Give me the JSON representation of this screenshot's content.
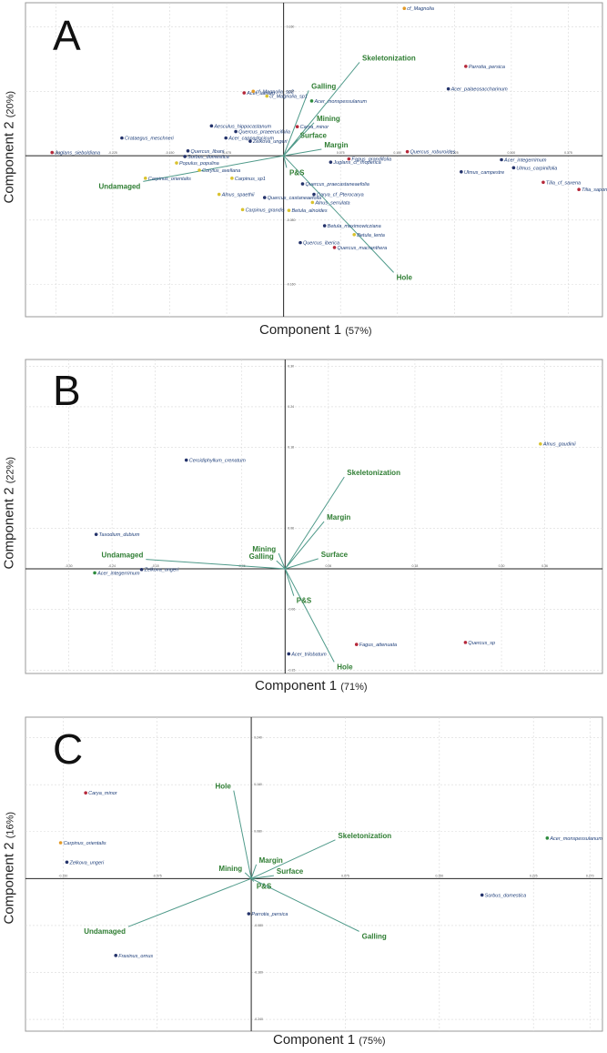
{
  "colors": {
    "vector": "#4f9a8a",
    "vector_label": "#2e7d32",
    "species_label": "#1f3f7a",
    "point_red": "#b5283a",
    "point_orange": "#e39a27",
    "point_navy": "#24336b",
    "point_green": "#2e8b3e",
    "point_yellow": "#d9c22e",
    "grid": "#d9d9d9",
    "frame": "#9a9a9a"
  },
  "chart_data": [
    {
      "type": "scatter",
      "panel_label": "A",
      "xlabel": "Component 1",
      "xlabel_pct": "(57%)",
      "ylabel": "Component 2",
      "ylabel_pct": "(20%)",
      "xlim": [
        -0.34,
        0.42
      ],
      "ylim": [
        -0.2,
        0.19
      ],
      "grid": true,
      "x_ticks": [
        {
          "v": -0.3,
          "label": "-0.300"
        },
        {
          "v": -0.225,
          "label": "-0.225"
        },
        {
          "v": -0.15,
          "label": "-0.150"
        },
        {
          "v": -0.075,
          "label": "-0.075"
        },
        {
          "v": 0.075,
          "label": "0.075"
        },
        {
          "v": 0.15,
          "label": "0.150"
        },
        {
          "v": 0.225,
          "label": "0.225"
        },
        {
          "v": 0.3,
          "label": "0.300"
        },
        {
          "v": 0.375,
          "label": "0.375"
        }
      ],
      "y_ticks": [
        {
          "v": 0.16,
          "label": "0.160"
        },
        {
          "v": 0.08,
          "label": "0.080"
        },
        {
          "v": -0.08,
          "label": "-0.080"
        },
        {
          "v": -0.16,
          "label": "-0.160"
        }
      ],
      "points": [
        {
          "x": 0.159,
          "y": 0.183,
          "label": "cf_Magnolia",
          "color": "orange"
        },
        {
          "x": 0.24,
          "y": 0.111,
          "label": "Parrotia_persica",
          "color": "red"
        },
        {
          "x": 0.217,
          "y": 0.083,
          "label": "Acer_palaeosaccharinum",
          "color": "navy"
        },
        {
          "x": -0.052,
          "y": 0.078,
          "label": "Acer_laetum",
          "color": "red"
        },
        {
          "x": -0.04,
          "y": 0.08,
          "label": "cf_Magnolia_sp2",
          "color": "orange"
        },
        {
          "x": -0.022,
          "y": 0.074,
          "label": "cf_Magnolia_sp1",
          "color": "yellow"
        },
        {
          "x": 0.037,
          "y": 0.068,
          "label": "Acer_monspessulanum",
          "color": "green"
        },
        {
          "x": -0.095,
          "y": 0.037,
          "label": "Aesculus_hippocastanum",
          "color": "navy"
        },
        {
          "x": -0.063,
          "y": 0.03,
          "label": "Quercus_praeerucifolia",
          "color": "navy"
        },
        {
          "x": 0.018,
          "y": 0.036,
          "label": "Carya_minor",
          "color": "red"
        },
        {
          "x": -0.076,
          "y": 0.022,
          "label": "Acer_cappadocicum",
          "color": "navy"
        },
        {
          "x": -0.044,
          "y": 0.018,
          "label": "Zelkova_ungeri",
          "color": "navy"
        },
        {
          "x": -0.213,
          "y": 0.022,
          "label": "Crataegus_meschneri",
          "color": "navy"
        },
        {
          "x": -0.305,
          "y": 0.004,
          "label": "Juglans_sieboldiana",
          "color": "red"
        },
        {
          "x": -0.126,
          "y": 0.006,
          "label": "Quercus_libani",
          "color": "navy"
        },
        {
          "x": -0.13,
          "y": -0.001,
          "label": "Sorbus_domestica",
          "color": "navy"
        },
        {
          "x": -0.141,
          "y": -0.009,
          "label": "Populus_populina",
          "color": "yellow"
        },
        {
          "x": -0.111,
          "y": -0.018,
          "label": "Corylus_avellana",
          "color": "yellow"
        },
        {
          "x": -0.182,
          "y": -0.028,
          "label": "Carpinus_orientalis",
          "color": "yellow"
        },
        {
          "x": -0.068,
          "y": -0.028,
          "label": "Carpinus_sp1",
          "color": "yellow"
        },
        {
          "x": -0.085,
          "y": -0.048,
          "label": "Alnus_spaethii",
          "color": "yellow"
        },
        {
          "x": -0.025,
          "y": -0.052,
          "label": "Quercus_castaneaefolia",
          "color": "navy"
        },
        {
          "x": -0.054,
          "y": -0.067,
          "label": "Carpinus_grandis",
          "color": "yellow"
        },
        {
          "x": 0.062,
          "y": -0.008,
          "label": "Juglans_cf_rhoperica",
          "color": "navy"
        },
        {
          "x": 0.086,
          "y": -0.004,
          "label": "Fagus_grandifolia",
          "color": "red"
        },
        {
          "x": 0.163,
          "y": 0.005,
          "label": "Quercus_roburoides",
          "color": "red"
        },
        {
          "x": 0.287,
          "y": -0.005,
          "label": "Acer_integerrimum",
          "color": "navy"
        },
        {
          "x": 0.303,
          "y": -0.015,
          "label": "Ulmus_carpinifolia",
          "color": "navy"
        },
        {
          "x": 0.234,
          "y": -0.02,
          "label": "Ulmus_campestre",
          "color": "navy"
        },
        {
          "x": 0.342,
          "y": -0.033,
          "label": "Tilia_cf_saxena",
          "color": "red"
        },
        {
          "x": 0.389,
          "y": -0.042,
          "label": "Tilia_saponifolia",
          "color": "red"
        },
        {
          "x": 0.025,
          "y": -0.035,
          "label": "Quercus_praecastaneaefolia",
          "color": "navy"
        },
        {
          "x": 0.04,
          "y": -0.048,
          "label": "Carya_cf_Pterocarya",
          "color": "navy"
        },
        {
          "x": 0.038,
          "y": -0.058,
          "label": "Alnus_serrulata",
          "color": "yellow"
        },
        {
          "x": 0.007,
          "y": -0.068,
          "label": "Betula_alnoides",
          "color": "yellow"
        },
        {
          "x": 0.054,
          "y": -0.087,
          "label": "Betula_maximowicziana",
          "color": "navy"
        },
        {
          "x": 0.093,
          "y": -0.098,
          "label": "Betula_lenta",
          "color": "yellow"
        },
        {
          "x": 0.022,
          "y": -0.108,
          "label": "Quercus_iberica",
          "color": "navy"
        },
        {
          "x": 0.067,
          "y": -0.114,
          "label": "Quercus_macranthera",
          "color": "red"
        }
      ],
      "vectors": [
        {
          "x": 0.1,
          "y": 0.116,
          "label": "Skeletonization"
        },
        {
          "x": 0.033,
          "y": 0.081,
          "label": "Galling"
        },
        {
          "x": 0.04,
          "y": 0.041,
          "label": "Mining"
        },
        {
          "x": 0.018,
          "y": 0.02,
          "label": "Surface"
        },
        {
          "x": 0.05,
          "y": 0.008,
          "label": "Margin"
        },
        {
          "x": 0.004,
          "y": -0.015,
          "label": "P&S"
        },
        {
          "x": 0.145,
          "y": -0.145,
          "label": "Hole"
        },
        {
          "x": -0.185,
          "y": -0.032,
          "label": "Undamaged"
        }
      ]
    },
    {
      "type": "scatter",
      "panel_label": "B",
      "xlabel": "Component 1",
      "xlabel_pct": "(71%)",
      "ylabel": "Component 2",
      "ylabel_pct": "(22%)",
      "xlim": [
        -0.36,
        0.44
      ],
      "ylim": [
        -0.155,
        0.31
      ],
      "grid": true,
      "x_ticks": [
        {
          "v": -0.3,
          "label": "-0.30"
        },
        {
          "v": -0.24,
          "label": "-0.24"
        },
        {
          "v": -0.18,
          "label": "-0.18"
        },
        {
          "v": -0.06,
          "label": "-0.06"
        },
        {
          "v": 0.06,
          "label": "0.06"
        },
        {
          "v": 0.18,
          "label": "0.18"
        },
        {
          "v": 0.3,
          "label": "0.30"
        },
        {
          "v": 0.36,
          "label": "0.36"
        }
      ],
      "y_ticks": [
        {
          "v": 0.3,
          "label": "0.30"
        },
        {
          "v": 0.24,
          "label": "0.24"
        },
        {
          "v": 0.18,
          "label": "0.18"
        },
        {
          "v": 0.06,
          "label": "0.06"
        },
        {
          "v": -0.06,
          "label": "-0.06"
        },
        {
          "v": -0.15,
          "label": "-0.15"
        }
      ],
      "points": [
        {
          "x": 0.354,
          "y": 0.185,
          "label": "Alnus_gaudinii",
          "color": "yellow"
        },
        {
          "x": -0.137,
          "y": 0.161,
          "label": "Cercidiphyllum_crenatum",
          "color": "navy"
        },
        {
          "x": -0.262,
          "y": 0.051,
          "label": "Taxodium_dubium",
          "color": "navy"
        },
        {
          "x": -0.199,
          "y": -0.001,
          "label": "Zelkova_ungeri",
          "color": "navy"
        },
        {
          "x": -0.264,
          "y": -0.006,
          "label": "Acer_integerrimum",
          "color": "green"
        },
        {
          "x": 0.099,
          "y": -0.112,
          "label": "Fagus_attenuata",
          "color": "red"
        },
        {
          "x": 0.005,
          "y": -0.126,
          "label": "Acer_trilobatum",
          "color": "navy"
        },
        {
          "x": 0.25,
          "y": -0.109,
          "label": "Quercus_sp",
          "color": "red"
        }
      ],
      "vectors": [
        {
          "x": 0.082,
          "y": 0.136,
          "label": "Skeletonization"
        },
        {
          "x": 0.054,
          "y": 0.07,
          "label": "Margin"
        },
        {
          "x": 0.046,
          "y": 0.015,
          "label": "Surface"
        },
        {
          "x": 0.012,
          "y": -0.04,
          "label": "P&S"
        },
        {
          "x": 0.068,
          "y": -0.138,
          "label": "Hole"
        },
        {
          "x": -0.009,
          "y": 0.023,
          "label": "Mining"
        },
        {
          "x": -0.012,
          "y": 0.012,
          "label": "Galling"
        },
        {
          "x": -0.193,
          "y": 0.014,
          "label": "Undamaged"
        }
      ]
    },
    {
      "type": "scatter",
      "panel_label": "C",
      "xlabel": "Component 1",
      "xlabel_pct": "(75%)",
      "ylabel": "Component 2",
      "ylabel_pct": "(16%)",
      "xlim": [
        -0.18,
        0.28
      ],
      "ylim": [
        -0.26,
        0.275
      ],
      "grid": true,
      "x_ticks": [
        {
          "v": -0.15,
          "label": "-0.150"
        },
        {
          "v": -0.075,
          "label": "-0.075"
        },
        {
          "v": 0.075,
          "label": "0.075"
        },
        {
          "v": 0.15,
          "label": "0.150"
        },
        {
          "v": 0.225,
          "label": "0.225"
        },
        {
          "v": 0.27,
          "label": "0.270"
        }
      ],
      "y_ticks": [
        {
          "v": 0.24,
          "label": "0.240"
        },
        {
          "v": 0.16,
          "label": "0.160"
        },
        {
          "v": 0.08,
          "label": "0.080"
        },
        {
          "v": -0.08,
          "label": "-0.080"
        },
        {
          "v": -0.16,
          "label": "-0.160"
        },
        {
          "v": -0.24,
          "label": "-0.240"
        }
      ],
      "points": [
        {
          "x": -0.132,
          "y": 0.146,
          "label": "Carya_minor",
          "color": "red"
        },
        {
          "x": -0.152,
          "y": 0.061,
          "label": "Carpinus_orientalis",
          "color": "orange"
        },
        {
          "x": -0.147,
          "y": 0.028,
          "label": "Zelkova_ungeri",
          "color": "navy"
        },
        {
          "x": 0.236,
          "y": 0.069,
          "label": "Acer_monspessulanum",
          "color": "green"
        },
        {
          "x": 0.184,
          "y": -0.028,
          "label": "Sorbus_domestica",
          "color": "navy"
        },
        {
          "x": -0.002,
          "y": -0.06,
          "label": "Parrotia_persica",
          "color": "navy"
        },
        {
          "x": -0.108,
          "y": -0.131,
          "label": "Fraxinus_ornus",
          "color": "navy"
        }
      ],
      "vectors": [
        {
          "x": -0.014,
          "y": 0.15,
          "label": "Hole"
        },
        {
          "x": 0.067,
          "y": 0.066,
          "label": "Skeletonization"
        },
        {
          "x": 0.004,
          "y": 0.024,
          "label": "Margin"
        },
        {
          "x": 0.018,
          "y": 0.005,
          "label": "Surface"
        },
        {
          "x": -0.005,
          "y": 0.01,
          "label": "Mining"
        },
        {
          "x": 0.002,
          "y": -0.005,
          "label": "P&S"
        },
        {
          "x": 0.086,
          "y": -0.09,
          "label": "Galling"
        },
        {
          "x": -0.098,
          "y": -0.082,
          "label": "Undamaged"
        }
      ]
    }
  ]
}
